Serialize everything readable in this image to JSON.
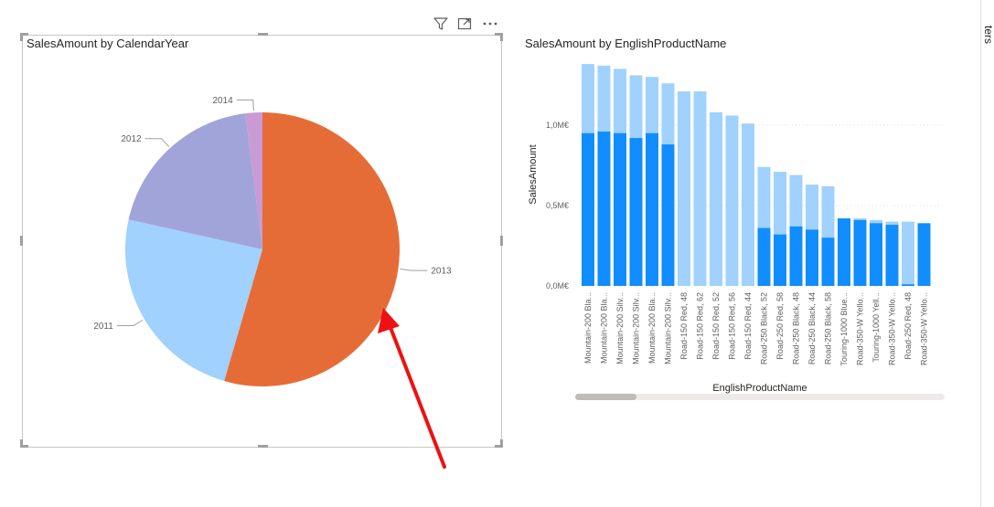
{
  "pie_visual": {
    "title": "SalesAmount by CalendarYear"
  },
  "bar_visual": {
    "title": "SalesAmount by EnglishProductName"
  },
  "rail": {
    "label": "ters"
  },
  "icons": {
    "filter": "filter-icon",
    "focus": "focus-mode-icon",
    "more": "more-options-icon"
  },
  "colors": {
    "year_2011": "#a0d1ff",
    "year_2012": "#a0a4d9",
    "year_2013": "#e66c37",
    "year_2014": "#c89bd4",
    "bar_light": "#a0d1ff",
    "bar_dark": "#118dff",
    "arrow": "#ee1111"
  },
  "chart_data": [
    {
      "type": "pie",
      "title": "SalesAmount by CalendarYear",
      "slices": [
        {
          "label": "2013",
          "value": 54.5
        },
        {
          "label": "2011",
          "value": 24.0
        },
        {
          "label": "2012",
          "value": 19.5
        },
        {
          "label": "2014",
          "value": 2.0
        }
      ]
    },
    {
      "type": "bar",
      "title": "SalesAmount by EnglishProductName",
      "xlabel": "EnglishProductName",
      "ylabel": "SalesAmount",
      "yticks": [
        {
          "value": 0,
          "label": "0,0M€"
        },
        {
          "value": 0.5,
          "label": "0,5M€"
        },
        {
          "value": 1.0,
          "label": "1,0M€"
        }
      ],
      "ylim": [
        0,
        1.4
      ],
      "categories": [
        "Mountain-200 Bla...",
        "Mountain-200 Bla...",
        "Mountain-200 Silv...",
        "Mountain-200 Silv...",
        "Mountain-200 Bla...",
        "Mountain-200 Silv...",
        "Road-150 Red, 48",
        "Road-150 Red, 62",
        "Road-150 Red, 52",
        "Road-150 Red, 56",
        "Road-150 Red, 44",
        "Road-250 Black, 52",
        "Road-250 Red, 58",
        "Road-250 Black, 48",
        "Road-250 Black, 44",
        "Road-250 Black, 58",
        "Touring-1000 Blue...",
        "Road-350-W Yello...",
        "Touring-1000 Yell...",
        "Road-350-W Yello...",
        "Road-250 Red, 48",
        "Road-350-W Yello..."
      ],
      "series": [
        {
          "values": [
            1.38,
            1.37,
            1.35,
            1.31,
            1.3,
            1.26,
            1.21,
            1.21,
            1.08,
            1.06,
            1.01,
            0.74,
            0.71,
            0.69,
            0.63,
            0.62,
            0.42,
            0.42,
            0.41,
            0.4,
            0.4,
            0.39
          ]
        },
        {
          "values": [
            0.95,
            0.96,
            0.95,
            0.92,
            0.95,
            0.88,
            0,
            0,
            0,
            0,
            0,
            0.36,
            0.32,
            0.37,
            0.35,
            0.3,
            0.42,
            0.41,
            0.39,
            0.38,
            0.01,
            0.39
          ]
        }
      ]
    }
  ]
}
